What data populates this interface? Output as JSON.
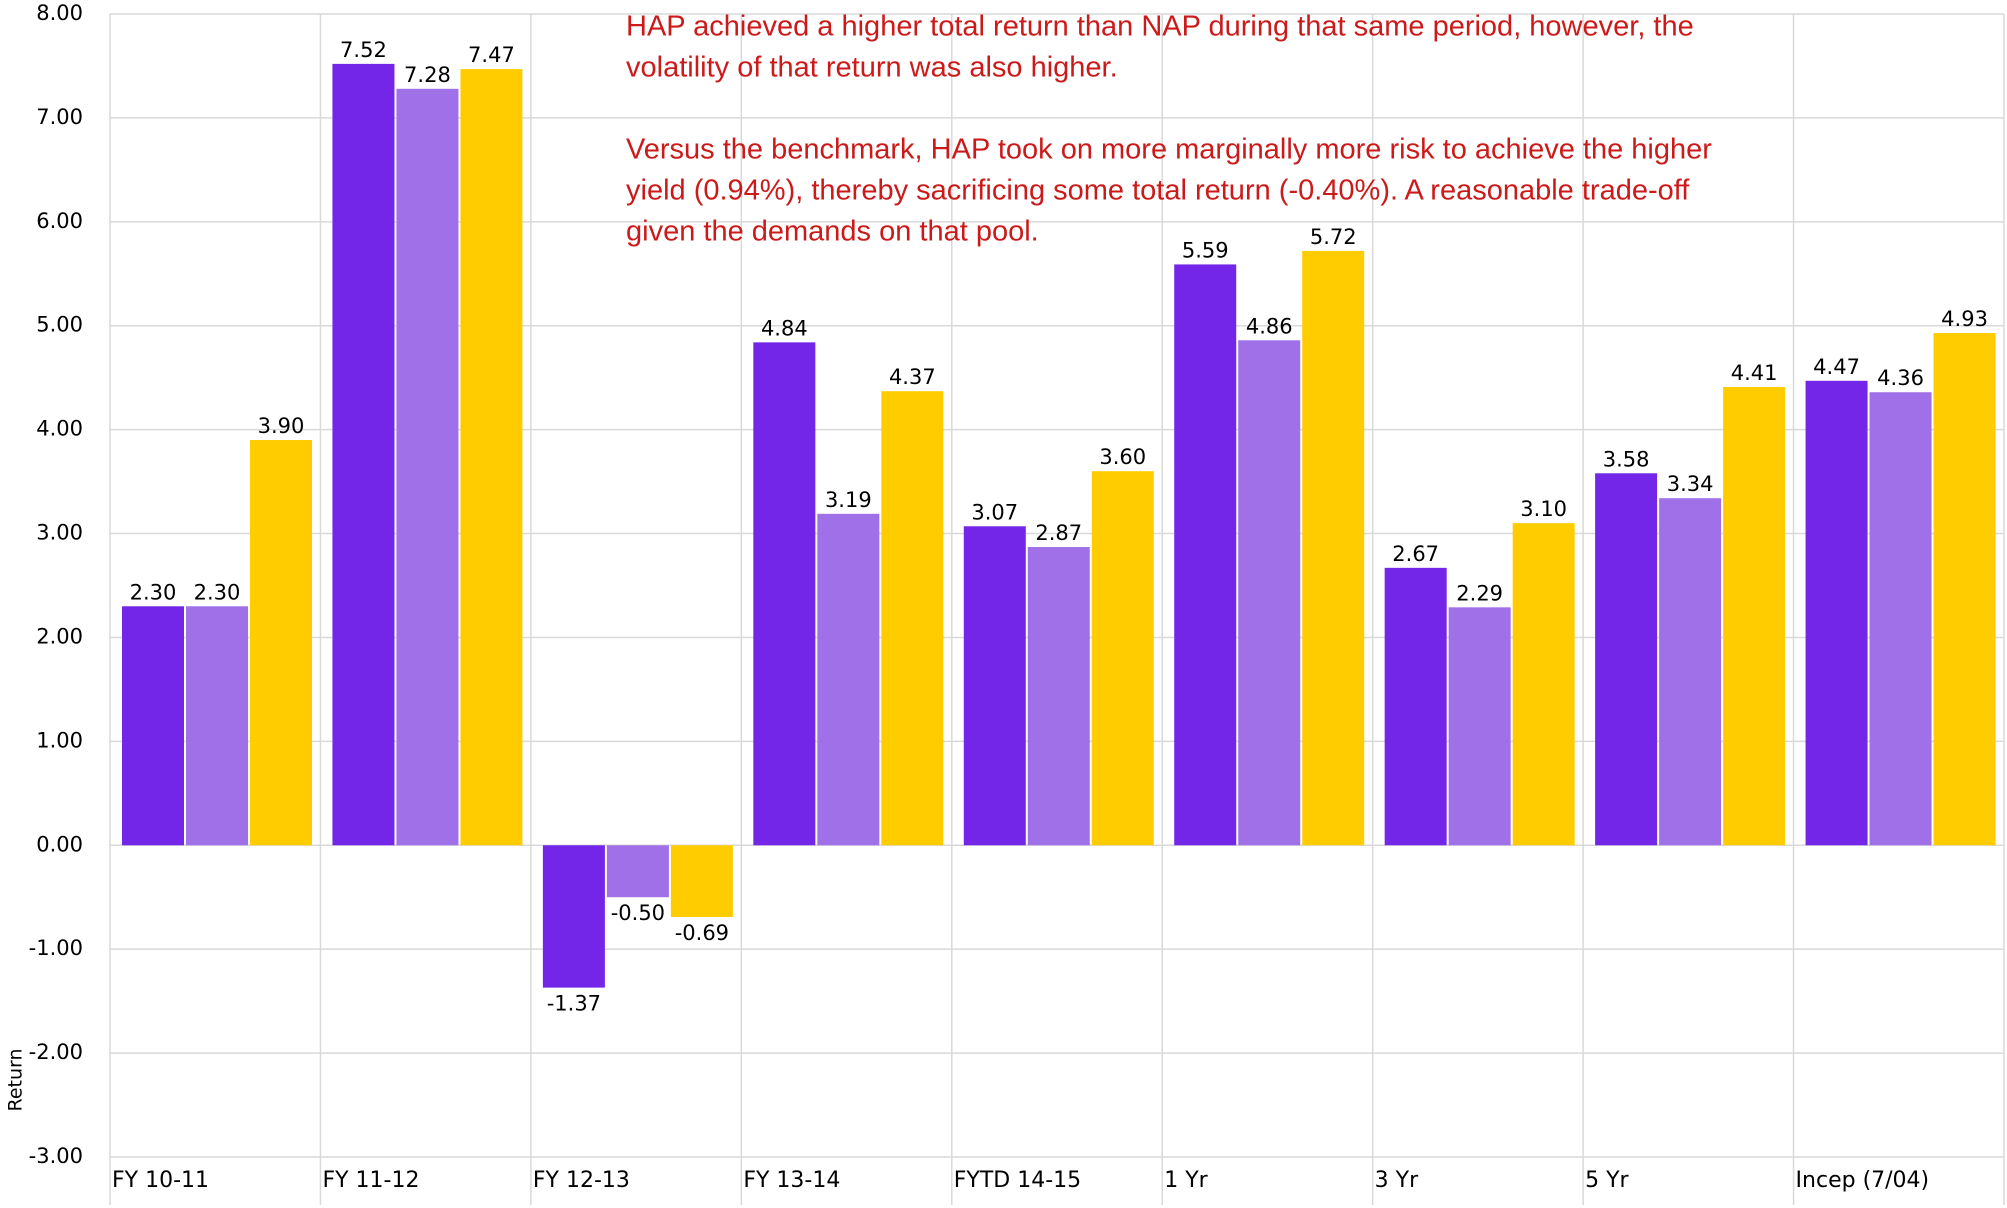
{
  "chart_data": {
    "type": "bar",
    "y_axis_label": "Return",
    "annotation": [
      "HAP achieved a higher total return than NAP during that same period, however, the",
      "volatility of that return was also higher.",
      "Versus the benchmark, HAP took on more marginally more risk to achieve the higher",
      "yield (0.94%), thereby sacrificing some total return (-0.40%).  A reasonable trade-off",
      "given the demands on that pool."
    ],
    "categories": [
      "FY 10-11",
      "FY 11-12",
      "FY 12-13",
      "FY 13-14",
      "FYTD 14-15",
      "1 Yr",
      "3 Yr",
      "5 Yr",
      "Incep (7/04)"
    ],
    "series": [
      {
        "color": "#7326e8",
        "values": [
          2.3,
          7.52,
          -1.37,
          4.84,
          3.07,
          5.59,
          2.67,
          3.58,
          4.47
        ],
        "value_labels": [
          "2.30",
          "7.52",
          "-1.37",
          "4.84",
          "3.07",
          "5.59",
          "2.67",
          "3.58",
          "4.47"
        ]
      },
      {
        "color": "#a070e8",
        "values": [
          2.3,
          7.28,
          -0.5,
          3.19,
          2.87,
          4.86,
          2.29,
          3.34,
          4.36
        ],
        "value_labels": [
          "2.30",
          "7.28",
          "-0.50",
          "3.19",
          "2.87",
          "4.86",
          "2.29",
          "3.34",
          "4.36"
        ]
      },
      {
        "color": "#ffcc00",
        "values": [
          3.9,
          7.47,
          -0.69,
          4.37,
          3.6,
          5.72,
          3.1,
          4.41,
          4.93
        ],
        "value_labels": [
          "3.90",
          "7.47",
          "-0.69",
          "4.37",
          "3.60",
          "5.72",
          "3.10",
          "4.41",
          "4.93"
        ]
      }
    ],
    "ylim": [
      -3,
      8
    ],
    "yticks": [
      {
        "value": -3,
        "label": "-3.00"
      },
      {
        "value": -2,
        "label": "-2.00"
      },
      {
        "value": -1,
        "label": "-1.00"
      },
      {
        "value": 0,
        "label": "0.00"
      },
      {
        "value": 1,
        "label": "1.00"
      },
      {
        "value": 2,
        "label": "2.00"
      },
      {
        "value": 3,
        "label": "3.00"
      },
      {
        "value": 4,
        "label": "4.00"
      },
      {
        "value": 5,
        "label": "5.00"
      },
      {
        "value": 6,
        "label": "6.00"
      },
      {
        "value": 7,
        "label": "7.00"
      },
      {
        "value": 8,
        "label": "8.00"
      }
    ],
    "grid": true
  }
}
